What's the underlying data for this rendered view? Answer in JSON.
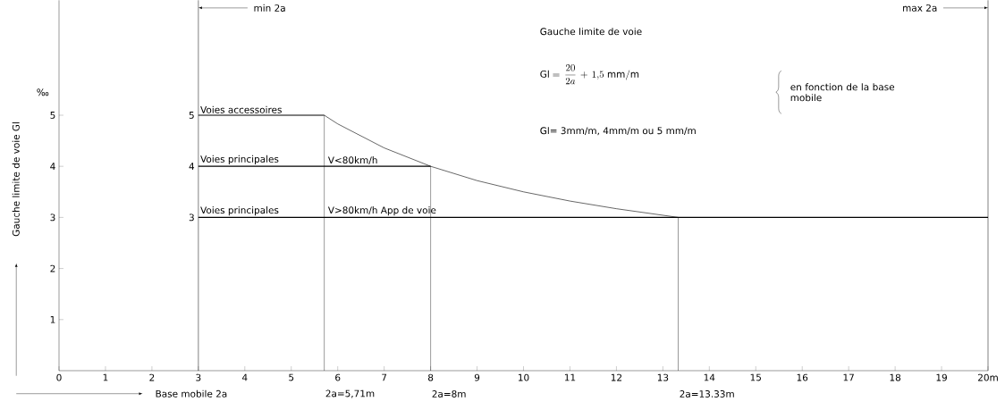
{
  "chart_data": {
    "type": "line",
    "xlabel": "Base mobile 2a",
    "ylabel": "Gauche limite de voie Gl",
    "xlim": [
      0,
      20
    ],
    "ylim": [
      0,
      7.25
    ],
    "xticks": [
      0,
      1,
      2,
      3,
      4,
      5,
      6,
      7,
      8,
      9,
      10,
      11,
      12,
      13,
      14,
      15,
      16,
      17,
      18,
      19,
      {
        "value": 20,
        "label": "20m"
      }
    ],
    "yticks": [
      1,
      2,
      3,
      4,
      5
    ],
    "marker": "none",
    "series": [
      {
        "x": [
          5.71,
          6,
          7,
          8,
          9,
          10,
          11,
          12,
          13.33
        ],
        "values": [
          5,
          4.83,
          4.36,
          4,
          3.72,
          3.5,
          3.32,
          3.17,
          3
        ]
      },
      {
        "name": "Voies accessoires",
        "x": [
          3,
          5.71
        ],
        "values": [
          5,
          5
        ],
        "value_labels": [
          "5",
          null
        ]
      },
      {
        "name": "Voies principales",
        "x": [
          3,
          8
        ],
        "values": [
          4,
          4
        ],
        "value_labels": [
          "4",
          null
        ]
      },
      {
        "name": "Voies principales",
        "x": [
          3,
          20
        ],
        "values": [
          3,
          3
        ],
        "value_labels": [
          "3",
          null
        ]
      },
      {
        "name": "2a=5,71m",
        "x": [
          5.71,
          5.71
        ],
        "values": [
          0,
          5
        ]
      },
      {
        "name": "2a=8m",
        "x": [
          8,
          8
        ],
        "values": [
          0,
          4
        ]
      },
      {
        "name": "2a=13.33m",
        "x": [
          13.33,
          13.33
        ],
        "values": [
          0,
          3
        ]
      }
    ],
    "ref_lines": [
      {
        "axis": "x",
        "value": 3,
        "label": "min 2a"
      },
      {
        "axis": "x",
        "value": 20,
        "label": "max 2a"
      }
    ],
    "annotations": [
      {
        "text": "V<80km/h",
        "x": 5.71,
        "y": 4
      },
      {
        "text": "V>80km/h App de voie",
        "x": 5.71,
        "y": 3
      },
      "‰",
      "Gauche limite de voie",
      "\\mathrm{Gl}=\\,\\frac{20}{2a}\\,+\\,1{,}5\\ \\mathrm{mm/m}",
      "Gl= 3mm/m, 4mm/m ou 5 mm/m",
      "en fonction de la base mobile"
    ]
  }
}
